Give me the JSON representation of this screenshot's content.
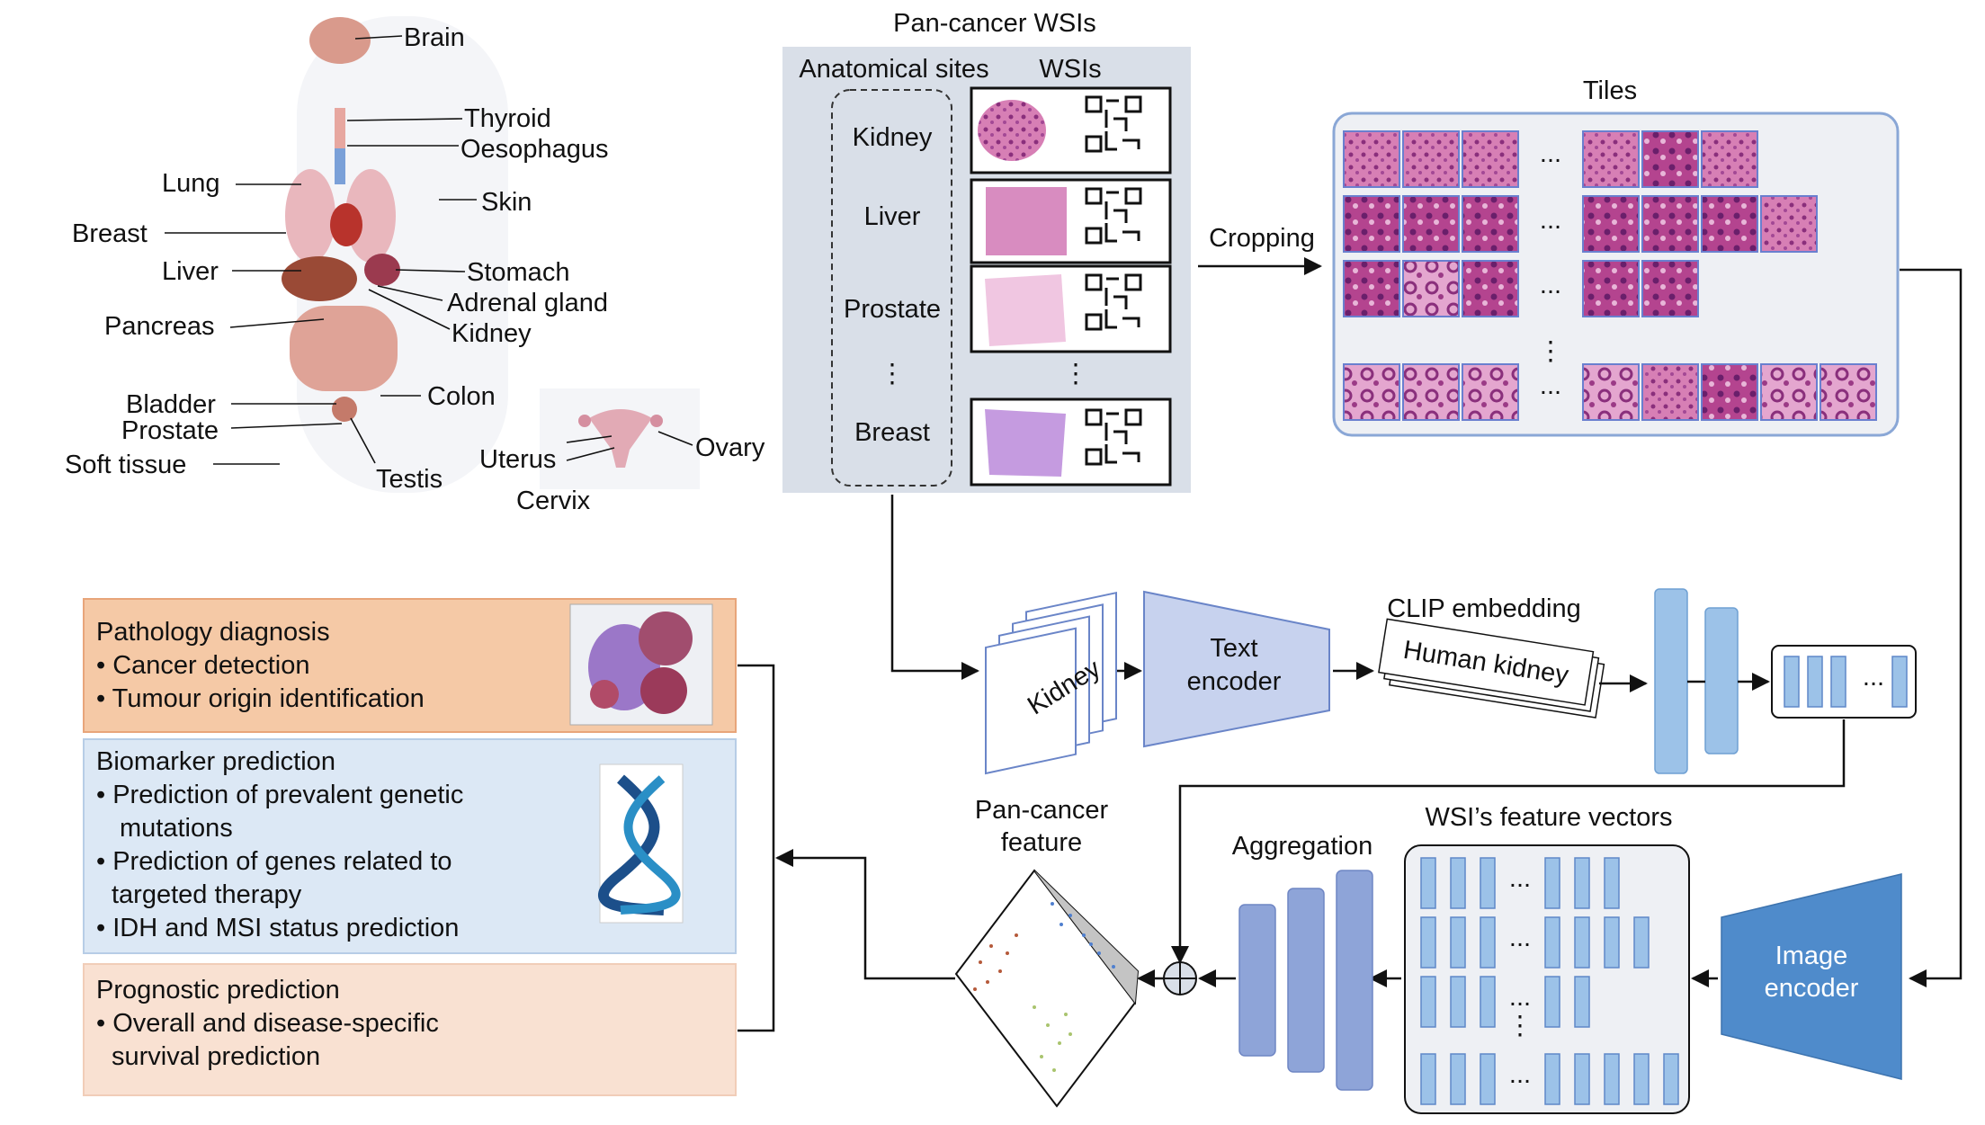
{
  "anatomy": {
    "labels": [
      "Brain",
      "Thyroid",
      "Oesophagus",
      "Lung",
      "Skin",
      "Breast",
      "Liver",
      "Stomach",
      "Adrenal gland",
      "Pancreas",
      "Kidney",
      "Bladder",
      "Colon",
      "Prostate",
      "Soft tissue",
      "Testis",
      "Uterus",
      "Ovary",
      "Cervix"
    ]
  },
  "wsi_panel": {
    "title": "Pan-cancer WSIs",
    "col_sites": "Anatomical sites",
    "col_wsis": "WSIs",
    "sites": [
      "Kidney",
      "Liver",
      "Prostate",
      "Breast"
    ],
    "ellipsis": "⋮"
  },
  "tiles": {
    "title": "Tiles",
    "cropping": "Cropping",
    "ellipsis_h": "...",
    "ellipsis_v": "⋮"
  },
  "text_branch": {
    "prompt": "Kidney",
    "encoder": [
      "Text",
      "encoder"
    ],
    "clip_title": "CLIP embedding",
    "clip_text": "Human kidney",
    "ellipsis": "..."
  },
  "image_branch": {
    "encoder": [
      "Image",
      "encoder"
    ],
    "features_title": "WSI’s feature vectors",
    "aggregation": "Aggregation",
    "pancancer": [
      "Pan-cancer",
      "feature"
    ],
    "ellipsis": "..."
  },
  "tasks": [
    {
      "title": "Pathology diagnosis",
      "items": [
        "• Cancer detection",
        "• Tumour origin identification"
      ],
      "bg": "#f5c9a6",
      "border": "#e8a57a"
    },
    {
      "title": "Biomarker prediction",
      "items": [
        "• Prediction of prevalent genetic",
        "mutations",
        "• Prediction of genes related to",
        "targeted therapy",
        "• IDH and MSI status prediction"
      ],
      "bg": "#dce8f5",
      "border": "#b7cde6"
    },
    {
      "title": "Prognostic prediction",
      "items": [
        "• Overall and disease-specific",
        "survival prediction"
      ],
      "bg": "#f9e1d2",
      "border": "#f1cdb8"
    }
  ],
  "colors": {
    "panel_gray": "#d9dfe8",
    "tiles_bg": "#eef0f4",
    "tiles_border": "#8aa7d6",
    "vector_blue": "#9cc2e8",
    "vector_dark": "#5f87c8",
    "encoder_fill": "#c7d2ee",
    "image_encoder": "#4f8bcb",
    "agg_bar": "#8ea4d8"
  }
}
